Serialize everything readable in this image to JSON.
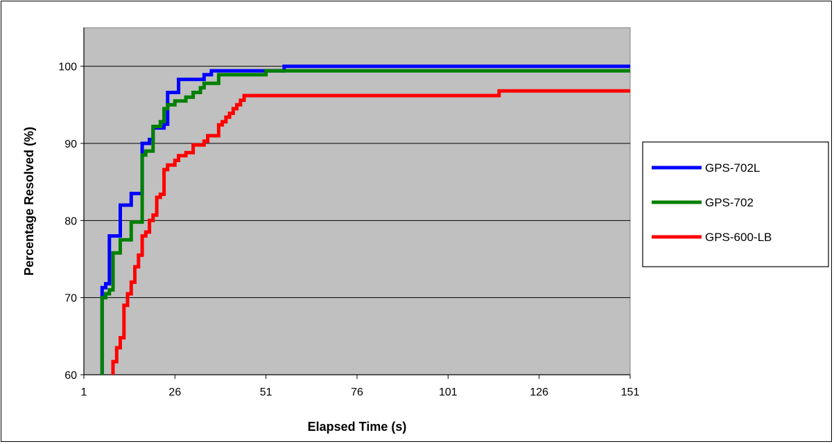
{
  "chart_data": {
    "type": "line",
    "title": "",
    "xlabel": "Elapsed Time (s)",
    "ylabel": "Percentage Resolved (%)",
    "xlim": [
      1,
      151
    ],
    "ylim": [
      60,
      105
    ],
    "x_ticks": [
      1,
      26,
      51,
      76,
      101,
      126,
      151
    ],
    "y_ticks": [
      60,
      70,
      80,
      90,
      100
    ],
    "grid": "horizontal",
    "legend_position": "right",
    "plot_background": "#c0c0c0",
    "series": [
      {
        "name": "GPS-702L",
        "color": "#0000ff",
        "points": [
          [
            6,
            60
          ],
          [
            6,
            71.3
          ],
          [
            7,
            71.3
          ],
          [
            7,
            71.8
          ],
          [
            8,
            71.8
          ],
          [
            8,
            78
          ],
          [
            11,
            78
          ],
          [
            11,
            82
          ],
          [
            14,
            82
          ],
          [
            14,
            83.5
          ],
          [
            16,
            83.5
          ],
          [
            16,
            83.5
          ],
          [
            17,
            83.5
          ],
          [
            17,
            90
          ],
          [
            19,
            90
          ],
          [
            19,
            90.5
          ],
          [
            20,
            90.5
          ],
          [
            20,
            92
          ],
          [
            23,
            92
          ],
          [
            23,
            92.5
          ],
          [
            24,
            92.5
          ],
          [
            24,
            96.6
          ],
          [
            26,
            96.6
          ],
          [
            26,
            96.6
          ],
          [
            27,
            96.6
          ],
          [
            27,
            98.3
          ],
          [
            34,
            98.3
          ],
          [
            34,
            98.9
          ],
          [
            36,
            98.9
          ],
          [
            36,
            99.4
          ],
          [
            54,
            99.4
          ],
          [
            54,
            99.4
          ],
          [
            56,
            99.4
          ],
          [
            56,
            100
          ],
          [
            151,
            100
          ]
        ]
      },
      {
        "name": "GPS-702",
        "color": "#008000",
        "points": [
          [
            6,
            60
          ],
          [
            6,
            70
          ],
          [
            7,
            70
          ],
          [
            7,
            70.5
          ],
          [
            8,
            70.5
          ],
          [
            8,
            71
          ],
          [
            9,
            71
          ],
          [
            9,
            75.8
          ],
          [
            11,
            75.8
          ],
          [
            11,
            77.5
          ],
          [
            14,
            77.5
          ],
          [
            14,
            79.8
          ],
          [
            16,
            79.8
          ],
          [
            16,
            79.8
          ],
          [
            17,
            79.8
          ],
          [
            17,
            88.5
          ],
          [
            18,
            88.5
          ],
          [
            18,
            89
          ],
          [
            20,
            89
          ],
          [
            20,
            92.2
          ],
          [
            22,
            92.2
          ],
          [
            22,
            92.8
          ],
          [
            23,
            92.8
          ],
          [
            23,
            94.5
          ],
          [
            24,
            94.5
          ],
          [
            24,
            95
          ],
          [
            26,
            95
          ],
          [
            26,
            95.5
          ],
          [
            29,
            95.5
          ],
          [
            29,
            96
          ],
          [
            31,
            96
          ],
          [
            31,
            96.6
          ],
          [
            33,
            96.6
          ],
          [
            33,
            97.2
          ],
          [
            34,
            97.2
          ],
          [
            34,
            97.8
          ],
          [
            38,
            97.8
          ],
          [
            38,
            98.9
          ],
          [
            51,
            98.9
          ],
          [
            51,
            99.4
          ],
          [
            151,
            99.4
          ]
        ]
      },
      {
        "name": "GPS-600-LB",
        "color": "#ff0000",
        "points": [
          [
            9,
            60
          ],
          [
            9,
            61.7
          ],
          [
            10,
            61.7
          ],
          [
            10,
            63.5
          ],
          [
            11,
            63.5
          ],
          [
            11,
            64.8
          ],
          [
            12,
            64.8
          ],
          [
            12,
            69
          ],
          [
            13,
            69
          ],
          [
            13,
            70.5
          ],
          [
            14,
            70.5
          ],
          [
            14,
            72
          ],
          [
            15,
            72
          ],
          [
            15,
            74
          ],
          [
            16,
            74
          ],
          [
            16,
            75.5
          ],
          [
            17,
            75.5
          ],
          [
            17,
            78
          ],
          [
            18,
            78
          ],
          [
            18,
            78.5
          ],
          [
            19,
            78.5
          ],
          [
            19,
            80
          ],
          [
            20,
            80
          ],
          [
            20,
            80.7
          ],
          [
            21,
            80.7
          ],
          [
            21,
            83
          ],
          [
            22,
            83
          ],
          [
            22,
            83.4
          ],
          [
            23,
            83.4
          ],
          [
            23,
            86.6
          ],
          [
            24,
            86.6
          ],
          [
            24,
            87.2
          ],
          [
            26,
            87.2
          ],
          [
            26,
            87.8
          ],
          [
            27,
            87.8
          ],
          [
            27,
            88.4
          ],
          [
            29,
            88.4
          ],
          [
            29,
            88.8
          ],
          [
            31,
            88.8
          ],
          [
            31,
            89.8
          ],
          [
            34,
            89.8
          ],
          [
            34,
            90.3
          ],
          [
            35,
            90.3
          ],
          [
            35,
            91
          ],
          [
            38,
            91
          ],
          [
            38,
            92.4
          ],
          [
            39,
            92.4
          ],
          [
            39,
            92.8
          ],
          [
            40,
            92.8
          ],
          [
            40,
            93.4
          ],
          [
            41,
            93.4
          ],
          [
            41,
            93.9
          ],
          [
            42,
            93.9
          ],
          [
            42,
            94.5
          ],
          [
            43,
            94.5
          ],
          [
            43,
            95
          ],
          [
            44,
            95
          ],
          [
            44,
            95.6
          ],
          [
            45,
            95.6
          ],
          [
            45,
            96.2
          ],
          [
            115,
            96.2
          ],
          [
            115,
            96.8
          ],
          [
            151,
            96.8
          ]
        ]
      }
    ]
  }
}
